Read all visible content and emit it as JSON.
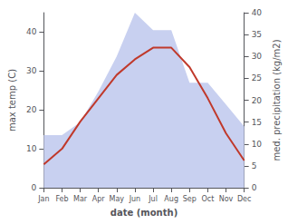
{
  "chart_data": {
    "type": "line",
    "xlabel": "date (month)",
    "ylabel": "max temp (C)",
    "y2label": "med. precipitation (kg/m2)",
    "categories": [
      "Jan",
      "Feb",
      "Mar",
      "Apr",
      "May",
      "Jun",
      "Jul",
      "Aug",
      "Sep",
      "Oct",
      "Nov",
      "Dec"
    ],
    "series": [
      {
        "type": "area",
        "axis": "y2",
        "color": "#c8d0f0",
        "values": [
          12,
          12,
          15,
          22,
          30,
          40,
          36,
          36,
          24,
          24,
          19,
          14
        ]
      },
      {
        "type": "line",
        "color": "#c0392b",
        "values": [
          6,
          10,
          17,
          23,
          29,
          33,
          36,
          36,
          31,
          23,
          14,
          7
        ]
      }
    ],
    "ylim": [
      0,
      45
    ],
    "yticks": [
      0,
      10,
      20,
      30,
      40
    ],
    "y2lim": [
      0,
      40
    ],
    "y2ticks": [
      0,
      5,
      10,
      15,
      20,
      25,
      30,
      35,
      40
    ],
    "grid": false
  }
}
